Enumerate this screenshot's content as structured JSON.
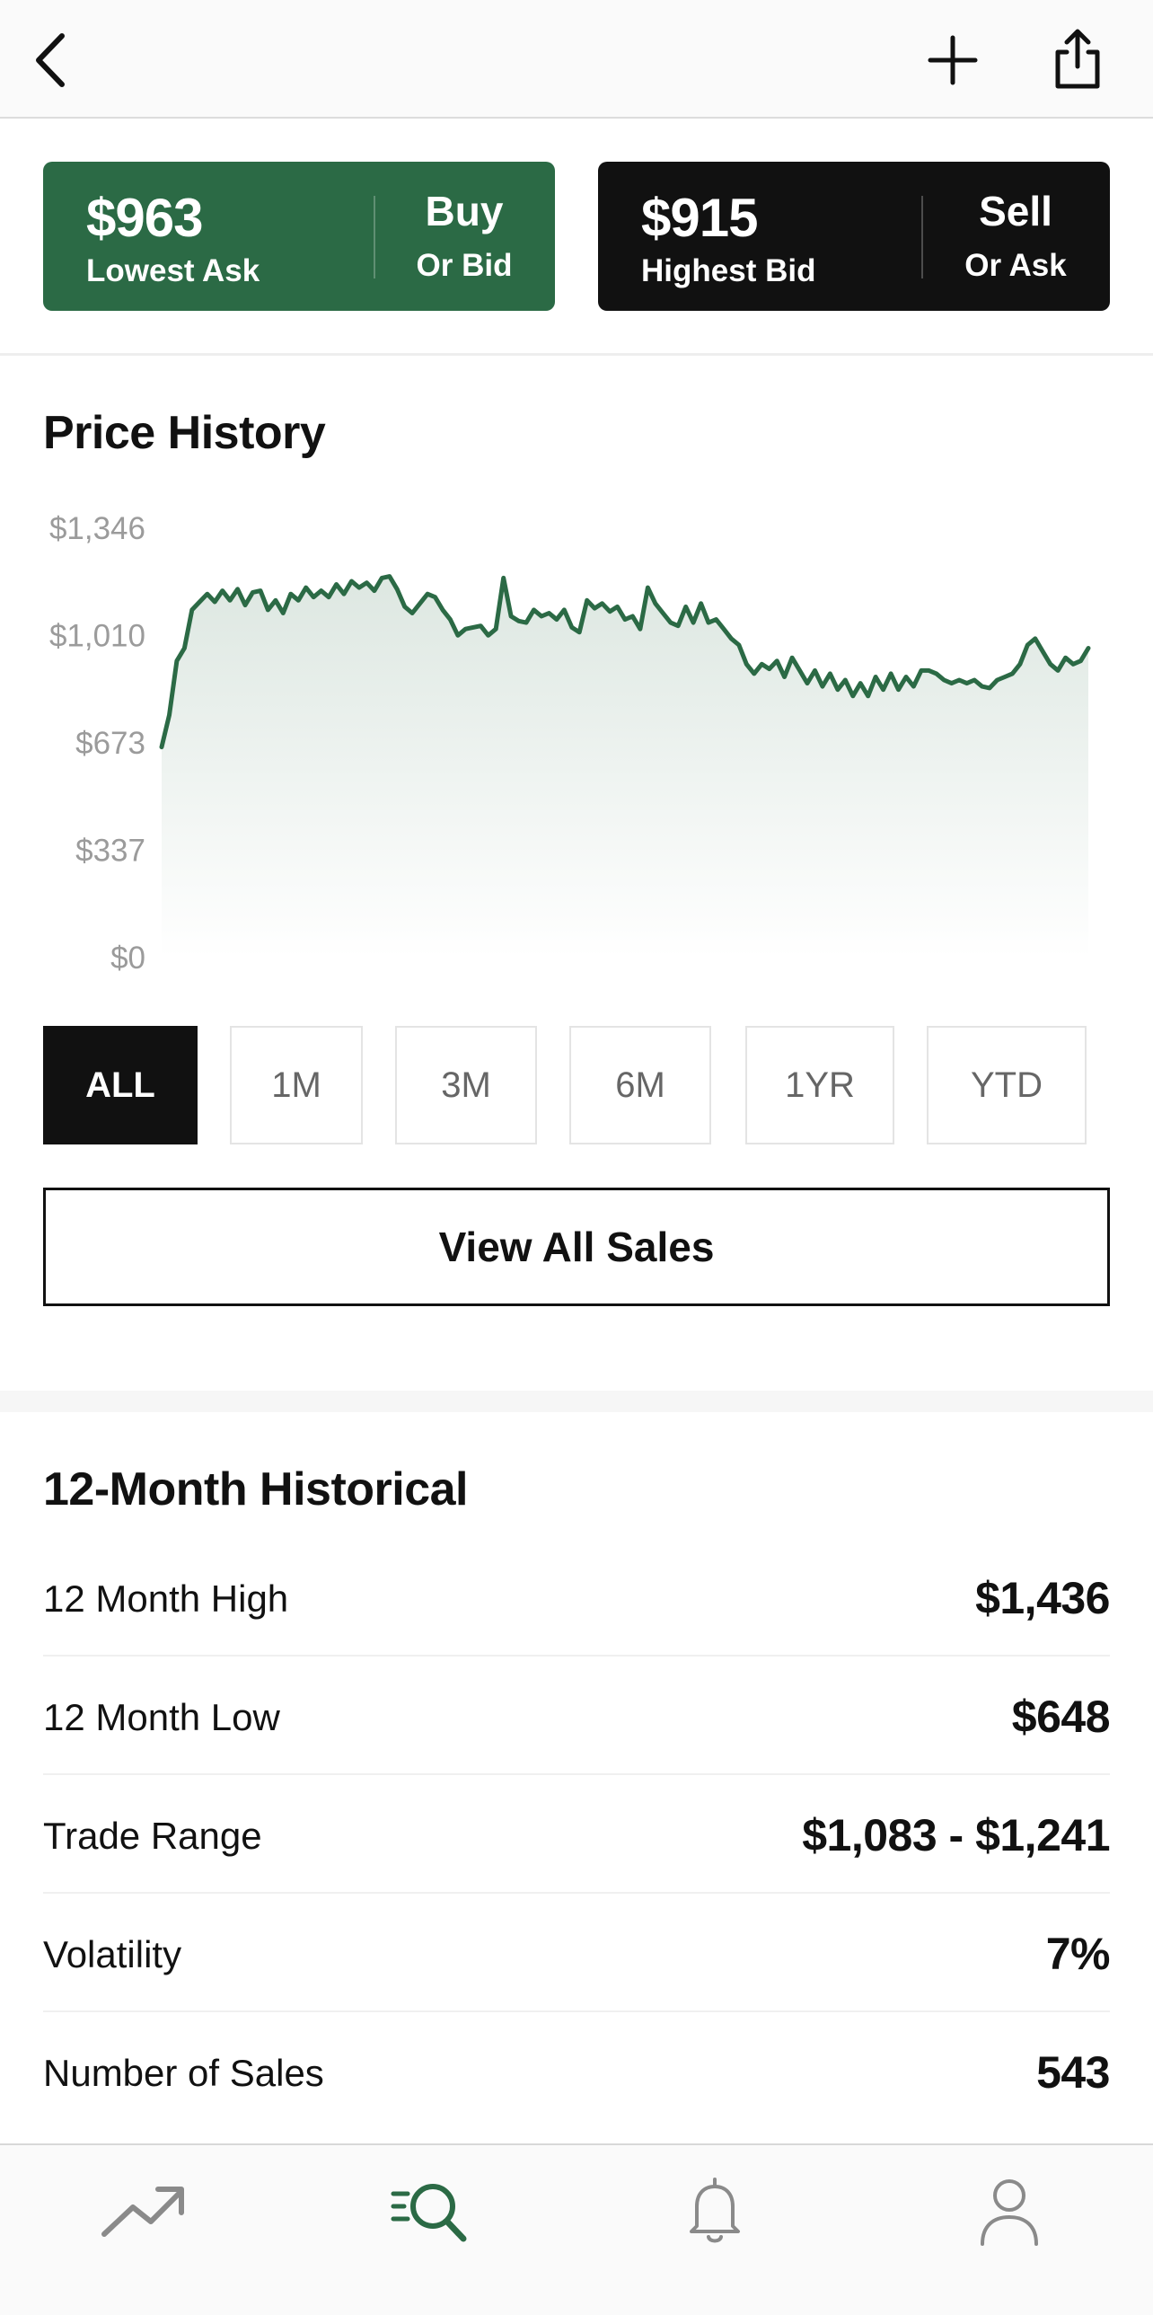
{
  "header": {
    "back_icon": "chevron-left-icon",
    "add_icon": "plus-icon",
    "share_icon": "share-icon"
  },
  "buy": {
    "price": "$963",
    "caption": "Lowest Ask",
    "action": "Buy",
    "action_sub": "Or Bid",
    "color": "#2b6a45"
  },
  "sell": {
    "price": "$915",
    "caption": "Highest Bid",
    "action": "Sell",
    "action_sub": "Or Ask",
    "color": "#111111"
  },
  "price_history": {
    "title": "Price History",
    "ranges": [
      "ALL",
      "1M",
      "3M",
      "6M",
      "1YR",
      "YTD"
    ],
    "active_range": "ALL",
    "view_all_label": "View All Sales"
  },
  "chart_data": {
    "type": "area",
    "title": "Price History",
    "y_ticks": [
      "$1,346",
      "$1,010",
      "$673",
      "$337",
      "$0"
    ],
    "ylim": [
      0,
      1346
    ],
    "grid": false,
    "line_color": "#2b6a45",
    "values": [
      660,
      760,
      930,
      970,
      1090,
      1115,
      1140,
      1115,
      1150,
      1120,
      1155,
      1105,
      1145,
      1150,
      1090,
      1120,
      1080,
      1140,
      1120,
      1160,
      1130,
      1150,
      1130,
      1170,
      1140,
      1180,
      1160,
      1175,
      1150,
      1190,
      1195,
      1155,
      1100,
      1080,
      1110,
      1140,
      1130,
      1090,
      1060,
      1010,
      1030,
      1035,
      1040,
      1010,
      1030,
      1190,
      1070,
      1055,
      1050,
      1090,
      1070,
      1080,
      1060,
      1090,
      1035,
      1020,
      1120,
      1095,
      1110,
      1085,
      1100,
      1060,
      1070,
      1030,
      1160,
      1110,
      1080,
      1050,
      1040,
      1100,
      1050,
      1110,
      1050,
      1060,
      1030,
      1000,
      980,
      920,
      890,
      920,
      905,
      930,
      880,
      940,
      900,
      860,
      900,
      850,
      890,
      840,
      870,
      820,
      860,
      820,
      880,
      840,
      890,
      840,
      880,
      850,
      900,
      900,
      890,
      870,
      860,
      870,
      860,
      870,
      850,
      845,
      870,
      880,
      890,
      920,
      980,
      1000,
      960,
      920,
      900,
      940,
      920,
      930,
      970
    ]
  },
  "historical": {
    "title": "12-Month Historical",
    "rows": [
      {
        "label": "12 Month High",
        "value": "$1,436"
      },
      {
        "label": "12 Month Low",
        "value": "$648"
      },
      {
        "label": "Trade Range",
        "value": "$1,083 - $1,241"
      },
      {
        "label": "Volatility",
        "value": "7%"
      },
      {
        "label": "Number of Sales",
        "value": "543"
      }
    ]
  },
  "nav": {
    "items": [
      {
        "icon": "trending-icon",
        "active": false
      },
      {
        "icon": "search-icon",
        "active": true
      },
      {
        "icon": "bell-icon",
        "active": false
      },
      {
        "icon": "profile-icon",
        "active": false
      }
    ],
    "active_color": "#2b6a45",
    "inactive_color": "#8a8a8a"
  }
}
